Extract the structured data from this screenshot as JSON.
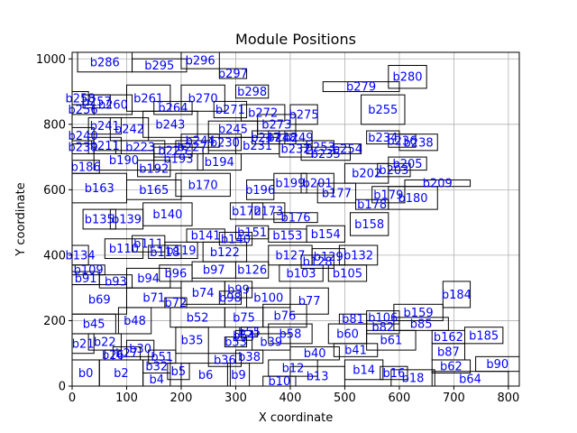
{
  "chart_data": {
    "type": "block_placement",
    "title": "Module Positions",
    "xlabel": "X coordinate",
    "ylabel": "Y coordinate",
    "xlim": [
      0,
      820
    ],
    "ylim": [
      0,
      1020
    ],
    "xticks": [
      0,
      100,
      200,
      300,
      400,
      500,
      600,
      700,
      800
    ],
    "yticks": [
      0,
      200,
      400,
      600,
      800,
      1000
    ],
    "grid": true,
    "modules": [
      {
        "name": "b0",
        "x": 0,
        "y": 0,
        "w": 50,
        "h": 80
      },
      {
        "name": "b2",
        "x": 50,
        "y": 0,
        "w": 80,
        "h": 80
      },
      {
        "name": "b4",
        "x": 130,
        "y": 0,
        "w": 50,
        "h": 40
      },
      {
        "name": "b5",
        "x": 175,
        "y": 20,
        "w": 40,
        "h": 50
      },
      {
        "name": "b6",
        "x": 200,
        "y": 0,
        "w": 90,
        "h": 70
      },
      {
        "name": "b9",
        "x": 285,
        "y": 0,
        "w": 40,
        "h": 70
      },
      {
        "name": "b10",
        "x": 350,
        "y": 0,
        "w": 60,
        "h": 30
      },
      {
        "name": "b12",
        "x": 360,
        "y": 30,
        "w": 90,
        "h": 50
      },
      {
        "name": "b13",
        "x": 400,
        "y": 0,
        "w": 100,
        "h": 60
      },
      {
        "name": "b14",
        "x": 500,
        "y": 20,
        "w": 70,
        "h": 60
      },
      {
        "name": "b16",
        "x": 565,
        "y": 20,
        "w": 50,
        "h": 40
      },
      {
        "name": "b18",
        "x": 585,
        "y": 0,
        "w": 80,
        "h": 50
      },
      {
        "name": "b62",
        "x": 660,
        "y": 40,
        "w": 70,
        "h": 40
      },
      {
        "name": "b64",
        "x": 660,
        "y": 0,
        "w": 140,
        "h": 45
      },
      {
        "name": "b90",
        "x": 740,
        "y": 45,
        "w": 80,
        "h": 45
      },
      {
        "name": "b21",
        "x": 0,
        "y": 100,
        "w": 40,
        "h": 60
      },
      {
        "name": "b22",
        "x": 30,
        "y": 110,
        "w": 60,
        "h": 50
      },
      {
        "name": "b26",
        "x": 60,
        "y": 80,
        "w": 30,
        "h": 30
      },
      {
        "name": "b27",
        "x": 75,
        "y": 80,
        "w": 50,
        "h": 40
      },
      {
        "name": "b30",
        "x": 100,
        "y": 90,
        "w": 50,
        "h": 50
      },
      {
        "name": "b32",
        "x": 130,
        "y": 40,
        "w": 50,
        "h": 40
      },
      {
        "name": "b51",
        "x": 140,
        "y": 70,
        "w": 50,
        "h": 40
      },
      {
        "name": "b35",
        "x": 190,
        "y": 100,
        "w": 60,
        "h": 80
      },
      {
        "name": "b36",
        "x": 250,
        "y": 60,
        "w": 60,
        "h": 40
      },
      {
        "name": "b38",
        "x": 300,
        "y": 70,
        "w": 50,
        "h": 40
      },
      {
        "name": "b39",
        "x": 330,
        "y": 110,
        "w": 70,
        "h": 50
      },
      {
        "name": "b40",
        "x": 400,
        "y": 80,
        "w": 90,
        "h": 40
      },
      {
        "name": "b41",
        "x": 480,
        "y": 90,
        "w": 80,
        "h": 40
      },
      {
        "name": "b87",
        "x": 660,
        "y": 80,
        "w": 60,
        "h": 50
      },
      {
        "name": "b45",
        "x": 0,
        "y": 160,
        "w": 80,
        "h": 60
      },
      {
        "name": "b48",
        "x": 85,
        "y": 160,
        "w": 60,
        "h": 80
      },
      {
        "name": "b52",
        "x": 180,
        "y": 180,
        "w": 100,
        "h": 60
      },
      {
        "name": "b53",
        "x": 280,
        "y": 120,
        "w": 40,
        "h": 30
      },
      {
        "name": "b54",
        "x": 300,
        "y": 140,
        "w": 30,
        "h": 30
      },
      {
        "name": "b55",
        "x": 310,
        "y": 150,
        "w": 30,
        "h": 30
      },
      {
        "name": "b58",
        "x": 360,
        "y": 130,
        "w": 80,
        "h": 60
      },
      {
        "name": "b60",
        "x": 470,
        "y": 130,
        "w": 70,
        "h": 60
      },
      {
        "name": "b61",
        "x": 540,
        "y": 110,
        "w": 90,
        "h": 60
      },
      {
        "name": "b75",
        "x": 280,
        "y": 180,
        "w": 70,
        "h": 60
      },
      {
        "name": "b76",
        "x": 350,
        "y": 180,
        "w": 80,
        "h": 70
      },
      {
        "name": "b81",
        "x": 490,
        "y": 190,
        "w": 50,
        "h": 30
      },
      {
        "name": "b82",
        "x": 540,
        "y": 160,
        "w": 60,
        "h": 40
      },
      {
        "name": "b85",
        "x": 590,
        "y": 170,
        "w": 100,
        "h": 40
      },
      {
        "name": "b106",
        "x": 540,
        "y": 190,
        "w": 60,
        "h": 40
      },
      {
        "name": "b159",
        "x": 590,
        "y": 200,
        "w": 90,
        "h": 50
      },
      {
        "name": "b162",
        "x": 660,
        "y": 130,
        "w": 60,
        "h": 40
      },
      {
        "name": "b185",
        "x": 720,
        "y": 130,
        "w": 70,
        "h": 50
      },
      {
        "name": "b69",
        "x": 0,
        "y": 220,
        "w": 100,
        "h": 90
      },
      {
        "name": "b71",
        "x": 100,
        "y": 240,
        "w": 100,
        "h": 60
      },
      {
        "name": "b72",
        "x": 170,
        "y": 240,
        "w": 40,
        "h": 30
      },
      {
        "name": "b74",
        "x": 200,
        "y": 250,
        "w": 80,
        "h": 70
      },
      {
        "name": "b98",
        "x": 270,
        "y": 250,
        "w": 40,
        "h": 40
      },
      {
        "name": "b99",
        "x": 280,
        "y": 270,
        "w": 50,
        "h": 50
      },
      {
        "name": "b100",
        "x": 320,
        "y": 240,
        "w": 80,
        "h": 60
      },
      {
        "name": "b77",
        "x": 400,
        "y": 220,
        "w": 70,
        "h": 80
      },
      {
        "name": "b184",
        "x": 680,
        "y": 240,
        "w": 50,
        "h": 80
      },
      {
        "name": "b91",
        "x": 0,
        "y": 310,
        "w": 50,
        "h": 40
      },
      {
        "name": "b93",
        "x": 50,
        "y": 300,
        "w": 60,
        "h": 40
      },
      {
        "name": "b94",
        "x": 100,
        "y": 300,
        "w": 80,
        "h": 60
      },
      {
        "name": "b96",
        "x": 160,
        "y": 320,
        "w": 60,
        "h": 50
      },
      {
        "name": "b97",
        "x": 220,
        "y": 330,
        "w": 80,
        "h": 50
      },
      {
        "name": "b109",
        "x": 0,
        "y": 340,
        "w": 60,
        "h": 30
      },
      {
        "name": "b126",
        "x": 300,
        "y": 330,
        "w": 60,
        "h": 50
      },
      {
        "name": "b103",
        "x": 380,
        "y": 320,
        "w": 80,
        "h": 50
      },
      {
        "name": "b105",
        "x": 470,
        "y": 320,
        "w": 70,
        "h": 50
      },
      {
        "name": "b128",
        "x": 420,
        "y": 360,
        "w": 60,
        "h": 40
      },
      {
        "name": "b127",
        "x": 360,
        "y": 370,
        "w": 80,
        "h": 60
      },
      {
        "name": "b129",
        "x": 440,
        "y": 370,
        "w": 60,
        "h": 50
      },
      {
        "name": "b132",
        "x": 490,
        "y": 370,
        "w": 70,
        "h": 60
      },
      {
        "name": "b134",
        "x": 0,
        "y": 370,
        "w": 30,
        "h": 60
      },
      {
        "name": "b110",
        "x": 60,
        "y": 390,
        "w": 70,
        "h": 60
      },
      {
        "name": "b111",
        "x": 110,
        "y": 410,
        "w": 60,
        "h": 50
      },
      {
        "name": "b118",
        "x": 140,
        "y": 390,
        "w": 60,
        "h": 40
      },
      {
        "name": "b119",
        "x": 170,
        "y": 390,
        "w": 60,
        "h": 50
      },
      {
        "name": "b122",
        "x": 240,
        "y": 380,
        "w": 80,
        "h": 60
      },
      {
        "name": "b140",
        "x": 270,
        "y": 430,
        "w": 60,
        "h": 40
      },
      {
        "name": "b141",
        "x": 210,
        "y": 440,
        "w": 70,
        "h": 40
      },
      {
        "name": "b151",
        "x": 300,
        "y": 450,
        "w": 60,
        "h": 40
      },
      {
        "name": "b153",
        "x": 360,
        "y": 440,
        "w": 70,
        "h": 40
      },
      {
        "name": "b154",
        "x": 430,
        "y": 440,
        "w": 70,
        "h": 50
      },
      {
        "name": "b158",
        "x": 510,
        "y": 460,
        "w": 70,
        "h": 70
      },
      {
        "name": "b135",
        "x": 20,
        "y": 480,
        "w": 60,
        "h": 60
      },
      {
        "name": "b139",
        "x": 70,
        "y": 480,
        "w": 60,
        "h": 60
      },
      {
        "name": "b140",
        "x": 130,
        "y": 490,
        "w": 90,
        "h": 70
      },
      {
        "name": "b172",
        "x": 290,
        "y": 510,
        "w": 60,
        "h": 50
      },
      {
        "name": "b173",
        "x": 330,
        "y": 510,
        "w": 60,
        "h": 50
      },
      {
        "name": "b176",
        "x": 370,
        "y": 500,
        "w": 80,
        "h": 30
      },
      {
        "name": "b177",
        "x": 450,
        "y": 560,
        "w": 70,
        "h": 60
      },
      {
        "name": "b178",
        "x": 520,
        "y": 540,
        "w": 60,
        "h": 30
      },
      {
        "name": "b179",
        "x": 550,
        "y": 560,
        "w": 60,
        "h": 50
      },
      {
        "name": "b180",
        "x": 580,
        "y": 540,
        "w": 90,
        "h": 70
      },
      {
        "name": "b163",
        "x": 0,
        "y": 560,
        "w": 100,
        "h": 90
      },
      {
        "name": "b165",
        "x": 100,
        "y": 570,
        "w": 100,
        "h": 60
      },
      {
        "name": "b170",
        "x": 190,
        "y": 580,
        "w": 100,
        "h": 70
      },
      {
        "name": "b196",
        "x": 320,
        "y": 570,
        "w": 50,
        "h": 60
      },
      {
        "name": "b199",
        "x": 370,
        "y": 590,
        "w": 60,
        "h": 60
      },
      {
        "name": "b201",
        "x": 420,
        "y": 590,
        "w": 60,
        "h": 60
      },
      {
        "name": "b202",
        "x": 500,
        "y": 620,
        "w": 80,
        "h": 60
      },
      {
        "name": "b203",
        "x": 560,
        "y": 640,
        "w": 60,
        "h": 40
      },
      {
        "name": "b205",
        "x": 580,
        "y": 660,
        "w": 70,
        "h": 40
      },
      {
        "name": "b209",
        "x": 610,
        "y": 610,
        "w": 120,
        "h": 20
      },
      {
        "name": "b186",
        "x": 0,
        "y": 650,
        "w": 50,
        "h": 40
      },
      {
        "name": "b190",
        "x": 40,
        "y": 660,
        "w": 110,
        "h": 60
      },
      {
        "name": "b192",
        "x": 120,
        "y": 640,
        "w": 60,
        "h": 50
      },
      {
        "name": "b193",
        "x": 150,
        "y": 660,
        "w": 90,
        "h": 70
      },
      {
        "name": "b194",
        "x": 230,
        "y": 660,
        "w": 80,
        "h": 50
      },
      {
        "name": "b230",
        "x": 250,
        "y": 720,
        "w": 60,
        "h": 50
      },
      {
        "name": "b231",
        "x": 300,
        "y": 710,
        "w": 80,
        "h": 50
      },
      {
        "name": "b232",
        "x": 380,
        "y": 700,
        "w": 60,
        "h": 50
      },
      {
        "name": "b235",
        "x": 420,
        "y": 690,
        "w": 90,
        "h": 40
      },
      {
        "name": "b253",
        "x": 430,
        "y": 710,
        "w": 50,
        "h": 40
      },
      {
        "name": "b254",
        "x": 480,
        "y": 710,
        "w": 50,
        "h": 30
      },
      {
        "name": "b234",
        "x": 540,
        "y": 740,
        "w": 60,
        "h": 40
      },
      {
        "name": "b236",
        "x": 580,
        "y": 730,
        "w": 50,
        "h": 40
      },
      {
        "name": "b238",
        "x": 600,
        "y": 720,
        "w": 70,
        "h": 50
      },
      {
        "name": "b239",
        "x": 0,
        "y": 710,
        "w": 40,
        "h": 40
      },
      {
        "name": "b211",
        "x": 30,
        "y": 710,
        "w": 60,
        "h": 50
      },
      {
        "name": "b223",
        "x": 80,
        "y": 710,
        "w": 90,
        "h": 40
      },
      {
        "name": "b225",
        "x": 150,
        "y": 700,
        "w": 70,
        "h": 40
      },
      {
        "name": "b227",
        "x": 190,
        "y": 710,
        "w": 60,
        "h": 40
      },
      {
        "name": "b240",
        "x": 0,
        "y": 740,
        "w": 40,
        "h": 50
      },
      {
        "name": "b241",
        "x": 30,
        "y": 770,
        "w": 60,
        "h": 50
      },
      {
        "name": "b242",
        "x": 70,
        "y": 750,
        "w": 70,
        "h": 70
      },
      {
        "name": "b243",
        "x": 130,
        "y": 760,
        "w": 100,
        "h": 80
      },
      {
        "name": "b244",
        "x": 200,
        "y": 730,
        "w": 70,
        "h": 40
      },
      {
        "name": "b245",
        "x": 250,
        "y": 760,
        "w": 90,
        "h": 50
      },
      {
        "name": "b247",
        "x": 330,
        "y": 740,
        "w": 50,
        "h": 40
      },
      {
        "name": "b248",
        "x": 360,
        "y": 740,
        "w": 50,
        "h": 40
      },
      {
        "name": "b249",
        "x": 390,
        "y": 740,
        "w": 50,
        "h": 40
      },
      {
        "name": "b273",
        "x": 340,
        "y": 770,
        "w": 70,
        "h": 60
      },
      {
        "name": "b275",
        "x": 400,
        "y": 800,
        "w": 50,
        "h": 60
      },
      {
        "name": "b255",
        "x": 530,
        "y": 800,
        "w": 80,
        "h": 90
      },
      {
        "name": "b256",
        "x": 0,
        "y": 830,
        "w": 40,
        "h": 30
      },
      {
        "name": "b257",
        "x": 20,
        "y": 850,
        "w": 50,
        "h": 40
      },
      {
        "name": "b258",
        "x": 0,
        "y": 860,
        "w": 30,
        "h": 40
      },
      {
        "name": "b260",
        "x": 40,
        "y": 830,
        "w": 70,
        "h": 60
      },
      {
        "name": "b261",
        "x": 100,
        "y": 840,
        "w": 80,
        "h": 80
      },
      {
        "name": "b264",
        "x": 150,
        "y": 830,
        "w": 70,
        "h": 40
      },
      {
        "name": "b270",
        "x": 200,
        "y": 840,
        "w": 80,
        "h": 80
      },
      {
        "name": "b271",
        "x": 260,
        "y": 820,
        "w": 60,
        "h": 50
      },
      {
        "name": "b272",
        "x": 310,
        "y": 810,
        "w": 80,
        "h": 50
      },
      {
        "name": "b298",
        "x": 300,
        "y": 880,
        "w": 60,
        "h": 40
      },
      {
        "name": "b279",
        "x": 460,
        "y": 900,
        "w": 140,
        "h": 30
      },
      {
        "name": "b280",
        "x": 580,
        "y": 910,
        "w": 70,
        "h": 70
      },
      {
        "name": "b286",
        "x": 10,
        "y": 960,
        "w": 100,
        "h": 60
      },
      {
        "name": "b295",
        "x": 110,
        "y": 960,
        "w": 100,
        "h": 40
      },
      {
        "name": "b296",
        "x": 200,
        "y": 970,
        "w": 70,
        "h": 50
      },
      {
        "name": "b297",
        "x": 270,
        "y": 940,
        "w": 50,
        "h": 30
      }
    ]
  }
}
